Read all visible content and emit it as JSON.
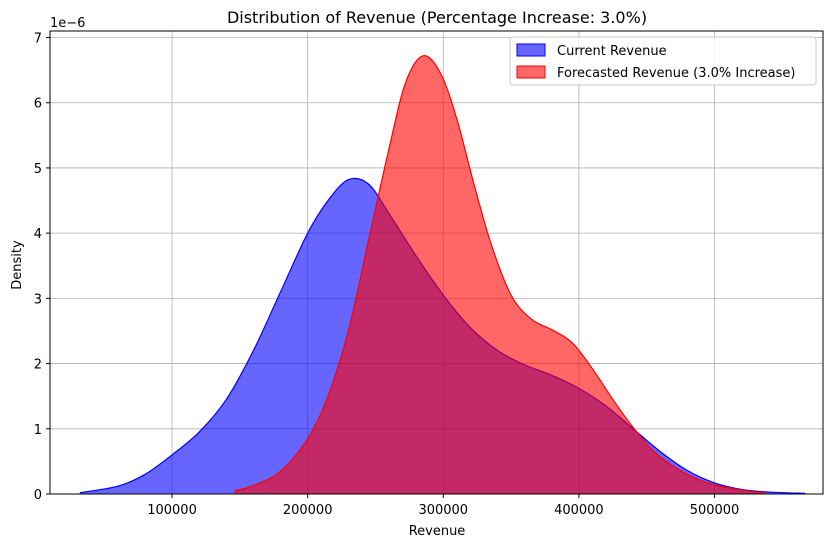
{
  "chart_data": {
    "type": "area",
    "title": "Distribution of Revenue (Percentage Increase: 3.0%)",
    "xlabel": "Revenue",
    "ylabel": "Density",
    "y_offset_text": "1e−6",
    "xlim": [
      10000,
      580000
    ],
    "ylim": [
      0,
      7.1
    ],
    "x_ticks": [
      100000,
      200000,
      300000,
      400000,
      500000
    ],
    "x_tick_labels": [
      "100000",
      "200000",
      "300000",
      "400000",
      "500000"
    ],
    "y_ticks": [
      0,
      1,
      2,
      3,
      4,
      5,
      6,
      7
    ],
    "y_tick_labels": [
      "0",
      "1",
      "2",
      "3",
      "4",
      "5",
      "6",
      "7"
    ],
    "grid": true,
    "legend_position": "top-right",
    "series": [
      {
        "name": "Current Revenue",
        "fill_color": "#0000ff",
        "line_color": "#0000ff",
        "alpha": 0.6,
        "x": [
          32000,
          60000,
          80000,
          100000,
          120000,
          140000,
          160000,
          180000,
          200000,
          215000,
          230000,
          245000,
          260000,
          280000,
          300000,
          320000,
          340000,
          360000,
          380000,
          400000,
          420000,
          440000,
          460000,
          480000,
          500000,
          520000,
          540000,
          567000
        ],
        "y": [
          0.02,
          0.12,
          0.3,
          0.6,
          0.95,
          1.45,
          2.2,
          3.1,
          4.0,
          4.5,
          4.82,
          4.75,
          4.3,
          3.65,
          3.05,
          2.55,
          2.2,
          1.98,
          1.82,
          1.62,
          1.35,
          1.0,
          0.65,
          0.36,
          0.17,
          0.07,
          0.03,
          0.01
        ]
      },
      {
        "name": "Forecasted Revenue (3.0% Increase)",
        "fill_color": "#ff0000",
        "line_color": "#ff0000",
        "alpha": 0.6,
        "x": [
          146000,
          160000,
          180000,
          200000,
          215000,
          230000,
          245000,
          260000,
          272000,
          285000,
          298000,
          310000,
          322000,
          335000,
          350000,
          365000,
          380000,
          395000,
          410000,
          425000,
          440000,
          455000,
          470000,
          485000,
          500000,
          520000,
          537000
        ],
        "y": [
          0.05,
          0.13,
          0.35,
          0.85,
          1.5,
          2.5,
          3.9,
          5.3,
          6.3,
          6.72,
          6.45,
          5.75,
          4.8,
          3.85,
          3.05,
          2.68,
          2.52,
          2.32,
          1.92,
          1.45,
          1.02,
          0.66,
          0.42,
          0.25,
          0.14,
          0.06,
          0.02
        ]
      }
    ]
  }
}
